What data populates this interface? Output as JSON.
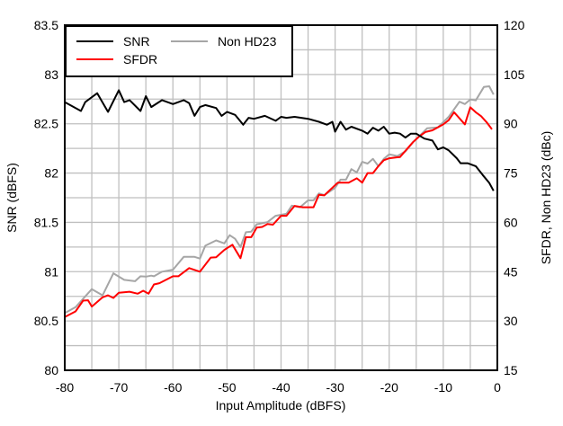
{
  "chart_data": {
    "type": "line",
    "xlabel": "Input Amplitude (dBFS)",
    "ylabel": "SNR (dBFS)",
    "y2label": "SFDR, Non HD23 (dBc)",
    "xlim": [
      -80,
      0
    ],
    "ylim": [
      80,
      83.5
    ],
    "y2lim": [
      15,
      120
    ],
    "xticks": [
      "-80",
      "-70",
      "-60",
      "-50",
      "-40",
      "-30",
      "-20",
      "-10",
      "0"
    ],
    "yticks": [
      "80",
      "80.5",
      "81",
      "81.5",
      "82",
      "82.5",
      "83",
      "83.5"
    ],
    "y2ticks": [
      "15",
      "30",
      "45",
      "60",
      "75",
      "90",
      "105",
      "120"
    ],
    "grid": true,
    "legend_position": "top-left",
    "series": [
      {
        "name": "SNR",
        "axis": "left",
        "color": "#000000",
        "x": [
          -80,
          -77,
          -76.2,
          -74,
          -72,
          -70,
          -69,
          -68,
          -66,
          -65,
          -64,
          -62,
          -60,
          -58,
          -57,
          -56,
          -55,
          -54,
          -52,
          -51,
          -50,
          -48.5,
          -47,
          -46,
          -45,
          -43,
          -41,
          -40,
          -39,
          -37.5,
          -35,
          -33,
          -31.5,
          -30.5,
          -30,
          -29,
          -28,
          -27,
          -25,
          -24,
          -23,
          -22,
          -21,
          -20,
          -19,
          -18,
          -17,
          -16,
          -15,
          -13.5,
          -12,
          -11,
          -10,
          -9,
          -7.5,
          -6.8,
          -5.5,
          -4,
          -2.7,
          -1.5,
          -0.7
        ],
        "y": [
          82.72,
          82.63,
          82.72,
          82.81,
          82.62,
          82.84,
          82.72,
          82.74,
          82.63,
          82.78,
          82.67,
          82.74,
          82.7,
          82.74,
          82.71,
          82.58,
          82.67,
          82.69,
          82.66,
          82.58,
          82.62,
          82.59,
          82.49,
          82.56,
          82.55,
          82.58,
          82.53,
          82.57,
          82.56,
          82.57,
          82.55,
          82.52,
          82.49,
          82.52,
          82.42,
          82.52,
          82.44,
          82.47,
          82.43,
          82.4,
          82.46,
          82.43,
          82.47,
          82.4,
          82.41,
          82.4,
          82.36,
          82.4,
          82.4,
          82.35,
          82.33,
          82.24,
          82.26,
          82.23,
          82.15,
          82.1,
          82.1,
          82.07,
          81.98,
          81.9,
          81.82
        ]
      },
      {
        "name": "SFDR",
        "axis": "right",
        "color": "#ff0000",
        "x": [
          -80,
          -78,
          -76.6,
          -75.7,
          -75,
          -73,
          -72,
          -71,
          -70,
          -68,
          -66.5,
          -65.5,
          -64.5,
          -63.5,
          -62.5,
          -60,
          -59,
          -57,
          -55,
          -53,
          -52,
          -50.5,
          -49,
          -47.5,
          -46.5,
          -45.5,
          -44.5,
          -43.5,
          -42.5,
          -41.5,
          -40,
          -39,
          -37.5,
          -36,
          -34,
          -33,
          -32,
          -29.5,
          -27.5,
          -26,
          -25,
          -24,
          -23,
          -22,
          -21,
          -20,
          -18.5,
          -18,
          -15.6,
          -14.5,
          -13.3,
          -12,
          -10,
          -9,
          -8,
          -6,
          -5,
          -4,
          -3,
          -2,
          -1
        ],
        "y": [
          31.2,
          32.9,
          36.2,
          36.3,
          34.4,
          37.2,
          37.8,
          37.0,
          38.6,
          38.9,
          38.3,
          39.2,
          38.3,
          41.1,
          41.5,
          43.6,
          43.6,
          46.1,
          45.0,
          49.3,
          49.4,
          51.6,
          53.2,
          49.1,
          55.5,
          55.5,
          58.4,
          58.6,
          59.5,
          59.3,
          62.0,
          62.0,
          65.0,
          64.6,
          64.6,
          68.4,
          68.2,
          72.1,
          72.1,
          73.4,
          72.1,
          75.0,
          75.0,
          77.1,
          78.9,
          79.5,
          79.8,
          79.9,
          84.4,
          86.1,
          87.5,
          88.0,
          89.8,
          91.1,
          93.5,
          89.8,
          95.0,
          93.5,
          92.3,
          90.5,
          88.3
        ]
      },
      {
        "name": "Non HD23",
        "axis": "right",
        "color": "#a6a6a6",
        "x": [
          -80,
          -78,
          -75,
          -73,
          -71,
          -69,
          -67,
          -66,
          -65,
          -64,
          -63.5,
          -62,
          -60,
          -58,
          -56,
          -55,
          -54,
          -52,
          -50.5,
          -49.5,
          -48.5,
          -47.5,
          -46.5,
          -45.5,
          -44.5,
          -42.5,
          -41,
          -39,
          -38,
          -36.5,
          -35,
          -34,
          -33,
          -32,
          -30,
          -29,
          -28,
          -27,
          -26,
          -25,
          -24,
          -23,
          -22,
          -21,
          -20,
          -18.5,
          -17,
          -15.6,
          -14.5,
          -13,
          -11,
          -9,
          -7,
          -6,
          -5,
          -4,
          -2.5,
          -1.5,
          -0.7
        ],
        "y": [
          32.4,
          34.2,
          39.7,
          37.8,
          44.5,
          42.5,
          42.1,
          43.6,
          43.5,
          43.8,
          43.6,
          45.0,
          45.6,
          49.5,
          49.5,
          49.0,
          52.9,
          54.5,
          53.6,
          56.1,
          55.0,
          52.5,
          57.0,
          57.2,
          59.4,
          60.1,
          62.0,
          62.6,
          65.1,
          64.6,
          66.7,
          66.7,
          68.8,
          68.3,
          70.5,
          73.0,
          73.0,
          76.2,
          75.2,
          78.4,
          77.9,
          79.3,
          77.1,
          79.3,
          80.7,
          80.2,
          81.6,
          84.4,
          86.1,
          88.6,
          88.9,
          92.1,
          96.7,
          96.0,
          97.4,
          97.1,
          101.2,
          101.4,
          98.9
        ]
      }
    ]
  }
}
